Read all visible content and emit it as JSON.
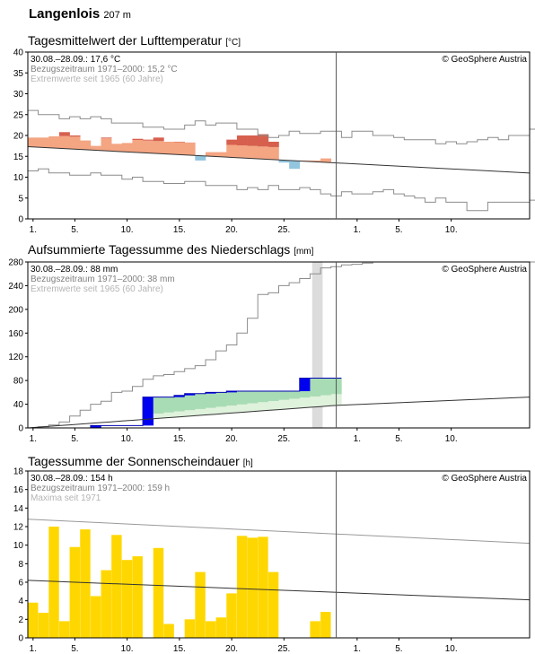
{
  "station": {
    "name": "Langenlois",
    "altitude": "207 m"
  },
  "copyright": "© GeoSphere Austria",
  "chart_data": [
    {
      "type": "area",
      "title": "Tagesmittelwert der Lufttemperatur",
      "unit": "[°C]",
      "ylim": [
        0,
        40
      ],
      "yticks": [
        0,
        5,
        10,
        15,
        20,
        25,
        30,
        35,
        40
      ],
      "xticks": [
        "1.",
        "5.",
        "10.",
        "15.",
        "20.",
        "25.",
        "1.",
        "5.",
        "10."
      ],
      "info": [
        "30.08.–28.09.: 17,6 °C",
        "Bezugszeitraum 1971–2000: 15,2 °C",
        "Extremwerte seit 1965 (60 Jahre)"
      ],
      "daily_mean": [
        19.5,
        19.5,
        19.8,
        20.8,
        20.0,
        18.8,
        17.5,
        19.5,
        18.0,
        18.2,
        19.2,
        19.0,
        19.5,
        18.5,
        18.5,
        18.3,
        14.0,
        16.0,
        16.0,
        19.0,
        20.0,
        20.0,
        20.3,
        18.5,
        13.5,
        12.0,
        14.0,
        14.0,
        14.5
      ],
      "normal": {
        "start": 17.3,
        "end": 11.0
      },
      "extreme_max": [
        26.0,
        25.0,
        25.0,
        24.0,
        24.5,
        24.0,
        24.5,
        24.0,
        23.0,
        23.0,
        23.0,
        22.0,
        22.0,
        21.5,
        21.5,
        22.5,
        23.5,
        22.5,
        23.0,
        23.0,
        21.5,
        21.5,
        20.0,
        19.5,
        20.0,
        21.0,
        20.5,
        20.5,
        21.0,
        21.0,
        19.5,
        21.0,
        21.0,
        20.0,
        20.0,
        19.5,
        19.0,
        19.0,
        19.0,
        18.0,
        18.5,
        18.0,
        18.5,
        19.0,
        19.5,
        19.0,
        20.0,
        20.0,
        21.5
      ],
      "extreme_min": [
        11.5,
        12.0,
        11.0,
        11.0,
        10.5,
        10.5,
        11.0,
        10.5,
        10.5,
        9.5,
        10.0,
        9.0,
        9.0,
        8.5,
        8.5,
        9.0,
        9.0,
        8.0,
        8.0,
        8.0,
        7.0,
        7.5,
        7.0,
        8.0,
        7.0,
        7.0,
        7.5,
        7.0,
        6.0,
        5.5,
        6.5,
        6.0,
        6.0,
        6.5,
        7.0,
        6.0,
        5.5,
        5.0,
        4.0,
        5.0,
        4.0,
        4.0,
        2.0,
        2.0,
        4.0,
        4.0,
        4.0,
        4.0,
        4.5
      ]
    },
    {
      "type": "area",
      "title": "Aufsummierte Tagessumme des Niederschlags",
      "unit": "[mm]",
      "ylim": [
        0,
        280
      ],
      "yticks": [
        0,
        40,
        80,
        120,
        160,
        200,
        240,
        280
      ],
      "xticks": [
        "1.",
        "5.",
        "10.",
        "15.",
        "20.",
        "25.",
        "1.",
        "5.",
        "10."
      ],
      "info": [
        "30.08.–28.09.: 88 mm",
        "Bezugszeitraum 1971–2000: 38 mm",
        "Extremwerte seit 1965 (60 Jahre)"
      ],
      "cumulative": [
        0,
        0,
        0,
        0,
        0,
        0,
        4,
        4,
        4,
        4,
        4,
        52,
        52,
        52,
        55,
        58,
        58,
        60,
        60,
        62,
        62,
        62,
        62,
        62,
        62,
        62,
        84,
        84,
        84,
        84,
        88
      ],
      "missing_day": 28,
      "normal": {
        "start": 0,
        "mid": 38,
        "end": 52
      },
      "extreme_max": [
        0,
        2,
        5,
        10,
        20,
        30,
        40,
        45,
        60,
        62,
        70,
        82,
        88,
        90,
        95,
        100,
        105,
        115,
        130,
        140,
        160,
        185,
        225,
        228,
        240,
        245,
        252,
        260,
        270,
        272,
        275,
        276,
        278,
        280,
        280,
        280,
        280,
        280,
        280,
        280,
        280,
        280,
        280,
        280,
        280,
        280,
        280,
        280,
        280,
        280
      ]
    },
    {
      "type": "bar",
      "title": "Tagessumme der Sonnenscheindauer",
      "unit": "[h]",
      "ylim": [
        0,
        18
      ],
      "yticks": [
        0,
        2,
        4,
        6,
        8,
        10,
        12,
        14,
        16,
        18
      ],
      "xticks": [
        "1.",
        "5.",
        "10.",
        "15.",
        "20.",
        "25.",
        "1.",
        "5.",
        "10."
      ],
      "info": [
        "30.08.–28.09.: 154 h",
        "Bezugszeitraum 1971–2000: 159 h",
        "Maxima seit 1971"
      ],
      "values": [
        3.8,
        2.7,
        12.0,
        1.8,
        9.8,
        11.7,
        4.5,
        7.3,
        11.1,
        8.4,
        8.8,
        0,
        9.7,
        1.5,
        0,
        2.0,
        7.1,
        1.8,
        2.2,
        4.8,
        11.0,
        10.8,
        10.9,
        7.1,
        0,
        0,
        0,
        1.8,
        2.8
      ],
      "normal": {
        "start": 6.2,
        "end": 4.1
      },
      "maxima": {
        "start": 12.8,
        "end": 10.2
      }
    }
  ]
}
